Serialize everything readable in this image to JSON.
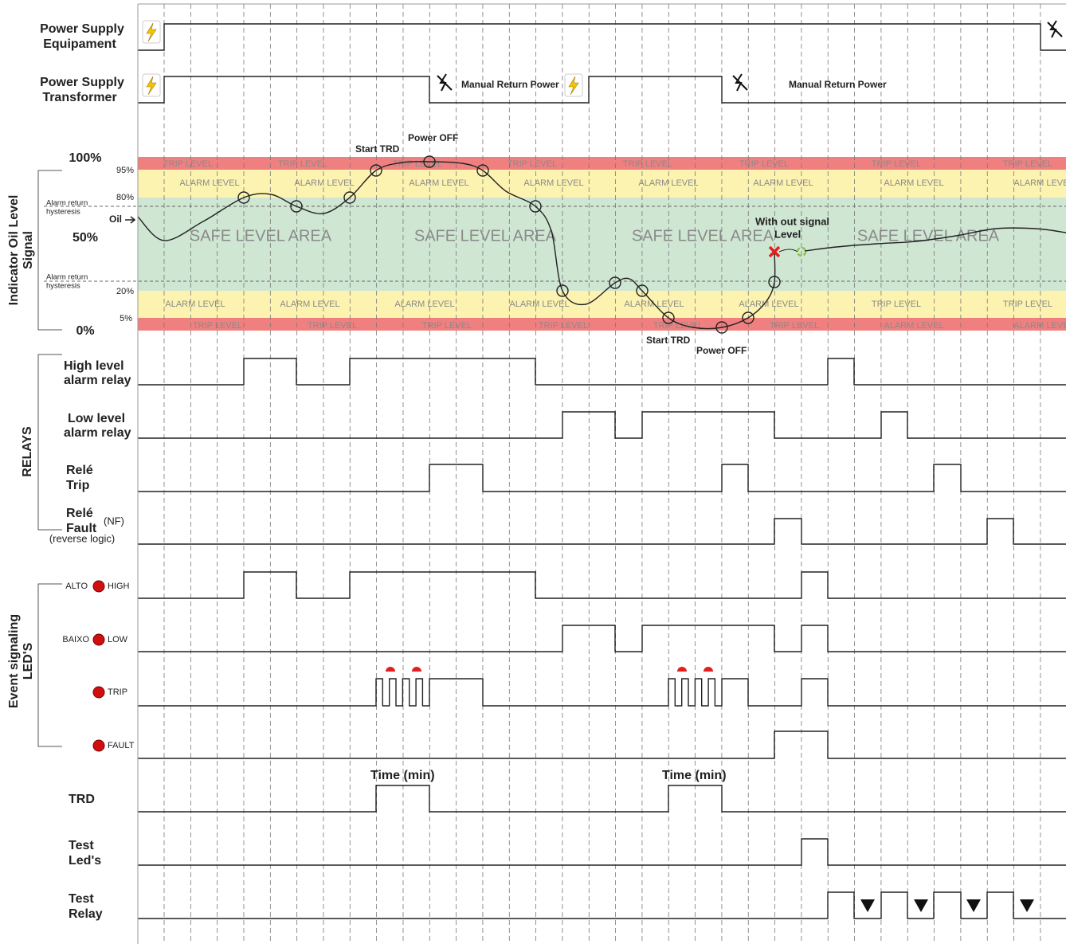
{
  "rows": {
    "power_equipment": [
      "Power Supply",
      "Equipament"
    ],
    "power_transformer": [
      "Power Supply",
      "Transformer"
    ],
    "oil_signal": [
      "Indicator Oil Level",
      "Signal"
    ],
    "high_relay": [
      "High level",
      "alarm relay"
    ],
    "low_relay": [
      "Low level",
      "alarm relay"
    ],
    "trip_relay": [
      "Relé",
      "Trip"
    ],
    "fault_relay": [
      "Relé",
      "Fault"
    ],
    "fault_nf": "(NF)",
    "fault_note": "(reverse logic)",
    "relays_group": "RELAYS",
    "led_group": [
      "Event signaling",
      "LED'S"
    ],
    "trd": "TRD",
    "test_leds": [
      "Test",
      "Led's"
    ],
    "test_relay": [
      "Test",
      "Relay"
    ]
  },
  "leds": {
    "alto": "ALTO",
    "high": "HIGH",
    "baixo": "BAIXO",
    "low": "LOW",
    "trip": "TRIP",
    "fault": "FAULT"
  },
  "oil_scale": {
    "p100": "100%",
    "p95": "95%",
    "p80": "80%",
    "p50": "50%",
    "p20": "20%",
    "p5": "5%",
    "p0": "0%",
    "hysteresis": [
      "Alarm return",
      "hysteresis"
    ],
    "oil": "Oil"
  },
  "zones": {
    "trip": "TRIP LEVEL",
    "alarm": "ALARM LEVEL",
    "safe": "SAFE LEVEL AREA"
  },
  "annotations": {
    "manual_return": "Manual Return Power",
    "start_trd": "Start TRD",
    "power_off": "Power OFF",
    "without_signal": [
      "With out signal",
      "Level"
    ],
    "time": "Time (min)"
  }
}
